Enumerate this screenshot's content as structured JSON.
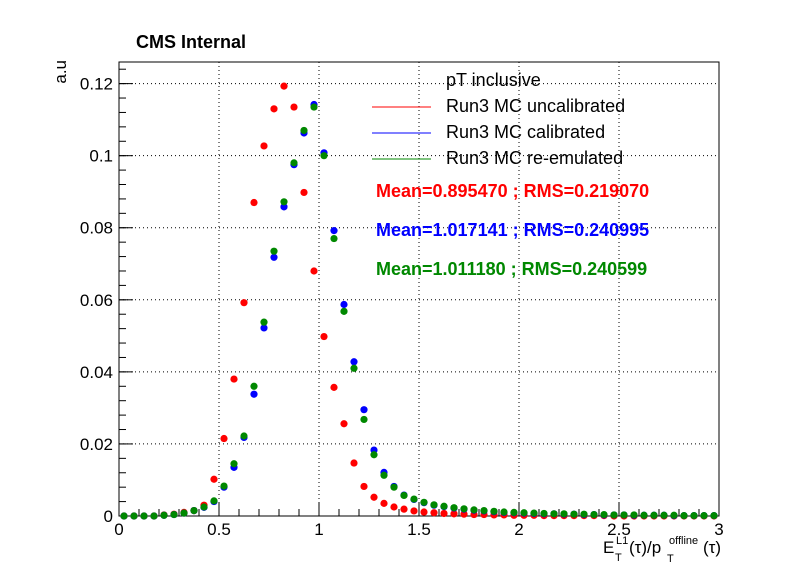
{
  "chart_data": {
    "type": "scatter",
    "title": "CMS Internal",
    "ylabel": "a.u",
    "xlabel": {
      "main": "E",
      "sup1": "L1",
      "sub1": "T",
      "mid": "(τ)/p",
      "sup2": "offline",
      "sub2": "T",
      "tail": "(τ)"
    },
    "xlim": [
      0,
      3
    ],
    "ylim": [
      0,
      0.126
    ],
    "xticks": [
      "0",
      "0.5",
      "1",
      "1.5",
      "2",
      "2.5",
      "3"
    ],
    "yticks": [
      "0",
      "0.02",
      "0.04",
      "0.06",
      "0.08",
      "0.1",
      "0.12"
    ],
    "grid": true,
    "legend": {
      "header": "pT inclusive",
      "placement": "top-right",
      "entries": [
        "Run3 MC uncalibrated",
        "Run3 MC calibrated",
        "Run3 MC re-emulated"
      ]
    },
    "stats": [
      "Mean=0.895470 ; RMS=0.219070",
      "Mean=1.017141 ; RMS=0.240995",
      "Mean=1.011180 ; RMS=0.240599"
    ],
    "x": [
      0.025,
      0.075,
      0.125,
      0.175,
      0.225,
      0.275,
      0.325,
      0.375,
      0.425,
      0.475,
      0.525,
      0.575,
      0.625,
      0.675,
      0.725,
      0.775,
      0.825,
      0.875,
      0.925,
      0.975,
      1.025,
      1.075,
      1.125,
      1.175,
      1.225,
      1.275,
      1.325,
      1.375,
      1.425,
      1.475,
      1.525,
      1.575,
      1.625,
      1.675,
      1.725,
      1.775,
      1.825,
      1.875,
      1.925,
      1.975,
      2.025,
      2.075,
      2.125,
      2.175,
      2.225,
      2.275,
      2.325,
      2.375,
      2.425,
      2.475,
      2.525,
      2.575,
      2.625,
      2.675,
      2.725,
      2.775,
      2.825,
      2.875,
      2.925,
      2.975
    ],
    "series": [
      {
        "name": "Run3 MC uncalibrated",
        "color": "#ff0000",
        "values": [
          0.0,
          0.0,
          0.0,
          0.0,
          0.0003,
          0.0005,
          0.001,
          0.0015,
          0.003,
          0.0102,
          0.0215,
          0.038,
          0.0592,
          0.087,
          0.1027,
          0.113,
          0.1193,
          0.1135,
          0.0898,
          0.068,
          0.0498,
          0.0357,
          0.0256,
          0.0147,
          0.0082,
          0.0052,
          0.0035,
          0.0025,
          0.0019,
          0.0014,
          0.0011,
          0.0009,
          0.0007,
          0.0006,
          0.0005,
          0.0004,
          0.0004,
          0.0003,
          0.0003,
          0.0002,
          0.0002,
          0.0002,
          0.0001,
          0.0001,
          0.0001,
          0.0001,
          0.0001,
          0.0001,
          0.0001,
          0.0,
          0.0,
          0.0,
          0.0,
          0.0,
          0.0,
          0.0,
          0.0,
          0.0,
          0.0,
          0.0
        ]
      },
      {
        "name": "Run3 MC calibrated",
        "color": "#0000ff",
        "values": [
          0.0,
          0.0,
          0.0,
          0.0,
          0.0002,
          0.0004,
          0.0008,
          0.0015,
          0.0024,
          0.004,
          0.008,
          0.0135,
          0.0218,
          0.0338,
          0.0522,
          0.0718,
          0.0858,
          0.0975,
          0.1063,
          0.1142,
          0.1008,
          0.0792,
          0.0587,
          0.0428,
          0.0295,
          0.0183,
          0.0121,
          0.0082,
          0.0058,
          0.0046,
          0.0037,
          0.003,
          0.0026,
          0.0022,
          0.0019,
          0.0016,
          0.0014,
          0.0012,
          0.001,
          0.0009,
          0.0008,
          0.0007,
          0.0006,
          0.0006,
          0.0005,
          0.0005,
          0.0004,
          0.0004,
          0.0003,
          0.0003,
          0.0003,
          0.0002,
          0.0002,
          0.0002,
          0.0002,
          0.0001,
          0.0001,
          0.0001,
          0.0001,
          0.0001
        ]
      },
      {
        "name": "Run3 MC re-emulated",
        "color": "#008800",
        "values": [
          0.0,
          0.0,
          0.0,
          0.0,
          0.0002,
          0.0004,
          0.0008,
          0.0015,
          0.0025,
          0.0042,
          0.0083,
          0.0145,
          0.0222,
          0.036,
          0.0538,
          0.0735,
          0.0872,
          0.098,
          0.107,
          0.1135,
          0.1,
          0.077,
          0.0568,
          0.041,
          0.0268,
          0.017,
          0.0113,
          0.008,
          0.0057,
          0.0047,
          0.0038,
          0.0031,
          0.0027,
          0.0023,
          0.002,
          0.0017,
          0.0015,
          0.0013,
          0.0011,
          0.001,
          0.0009,
          0.0008,
          0.0007,
          0.0006,
          0.0006,
          0.0005,
          0.0005,
          0.0004,
          0.0004,
          0.0003,
          0.0003,
          0.0003,
          0.0002,
          0.0002,
          0.0002,
          0.0002,
          0.0001,
          0.0001,
          0.0001,
          0.0001
        ]
      }
    ]
  }
}
